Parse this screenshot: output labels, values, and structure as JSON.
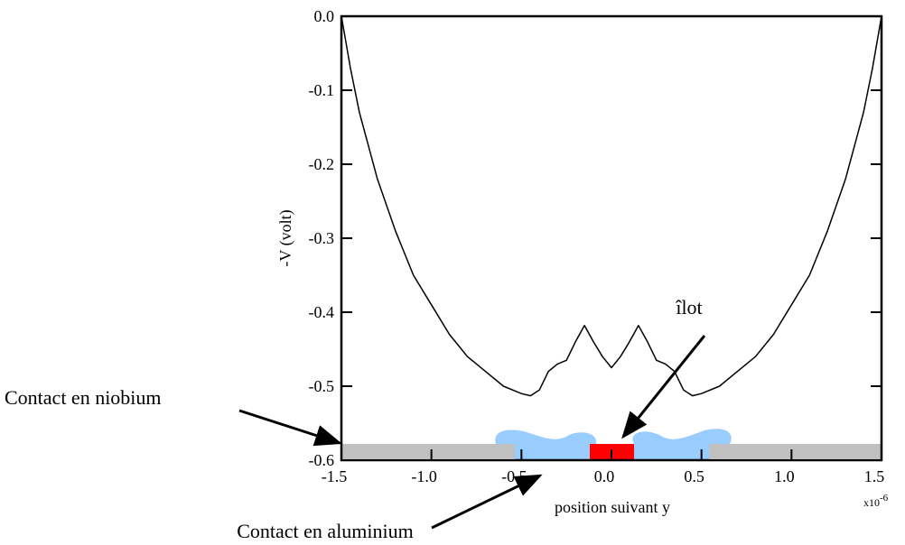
{
  "chart_data": {
    "type": "line",
    "ylabel": "-V (volt)",
    "xlabel": "position suivant y",
    "x_multiplier": {
      "base": "x10",
      "exponent": "-6"
    },
    "annotations": [
      "îlot",
      "Contact en niobium",
      "Contact en aluminium"
    ],
    "x": [
      -1.5,
      -1.45,
      -1.4,
      -1.3,
      -1.2,
      -1.1,
      -1.0,
      -0.9,
      -0.8,
      -0.7,
      -0.6,
      -0.5,
      -0.45,
      -0.4,
      -0.35,
      -0.3,
      -0.25,
      -0.2,
      -0.15,
      -0.1,
      -0.05,
      0,
      0.05,
      0.1,
      0.15,
      0.2,
      0.25,
      0.3,
      0.35,
      0.4,
      0.45,
      0.5,
      0.6,
      0.7,
      0.8,
      0.9,
      1.0,
      1.1,
      1.2,
      1.3,
      1.4,
      1.45,
      1.5
    ],
    "series": [
      {
        "name": "-V",
        "color": "#000000",
        "values": [
          0.0,
          -0.07,
          -0.13,
          -0.22,
          -0.29,
          -0.35,
          -0.39,
          -0.43,
          -0.46,
          -0.48,
          -0.5,
          -0.51,
          -0.513,
          -0.505,
          -0.48,
          -0.47,
          -0.465,
          -0.44,
          -0.418,
          -0.44,
          -0.46,
          -0.475,
          -0.46,
          -0.44,
          -0.418,
          -0.44,
          -0.465,
          -0.47,
          -0.48,
          -0.505,
          -0.513,
          -0.51,
          -0.5,
          -0.48,
          -0.46,
          -0.43,
          -0.39,
          -0.35,
          -0.29,
          -0.22,
          -0.13,
          -0.07,
          0.0
        ]
      }
    ],
    "xlim": [
      -1.5,
      1.5
    ],
    "ylim": [
      -0.6,
      0.0
    ],
    "xticks": [
      -1.5,
      {
        "value": -1.0,
        "label": "-1.0"
      },
      -0.5,
      {
        "value": 0,
        "label": "0.0"
      },
      0.5,
      {
        "value": 1.0,
        "label": "1.0"
      },
      1.5
    ],
    "yticks": [
      {
        "value": 0,
        "label": "0.0"
      },
      -0.1,
      -0.2,
      -0.3,
      -0.4,
      -0.5,
      -0.6
    ]
  }
}
